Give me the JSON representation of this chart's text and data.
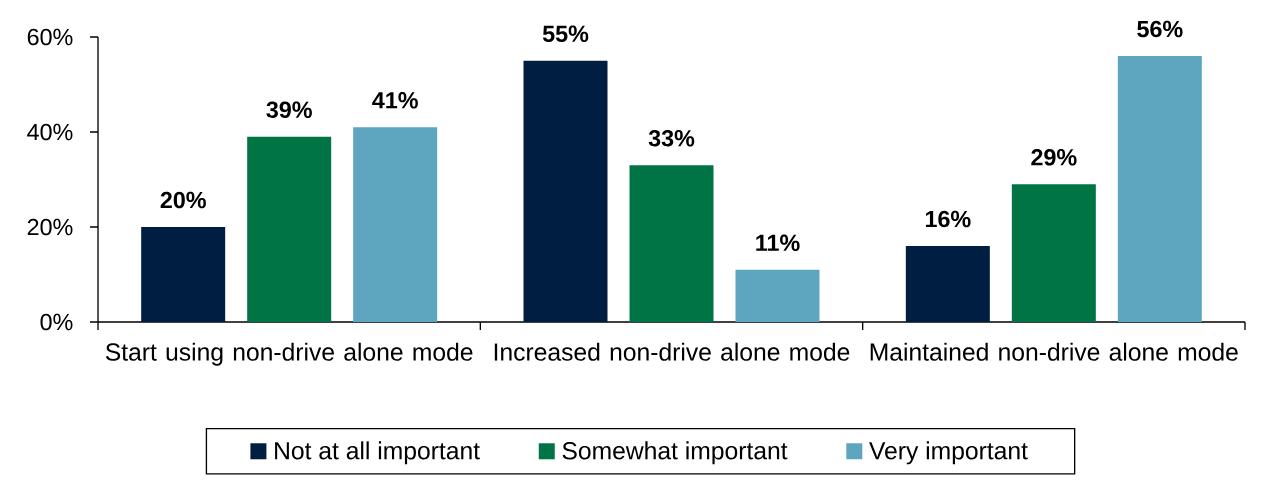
{
  "chart_data": {
    "type": "bar",
    "categories": [
      "Start using non-drive alone mode",
      "Increased non-drive alone mode",
      "Maintained non-drive alone mode"
    ],
    "series": [
      {
        "name": "Not at all important",
        "color": "#001d42",
        "values": [
          20,
          55,
          16
        ],
        "value_labels": [
          "20%",
          "55%",
          "16%"
        ]
      },
      {
        "name": "Somewhat important",
        "color": "#007445",
        "values": [
          39,
          33,
          29
        ],
        "value_labels": [
          "39%",
          "33%",
          "29%"
        ]
      },
      {
        "name": "Very important",
        "color": "#5ea5c0",
        "values": [
          41,
          11,
          56
        ],
        "value_labels": [
          "41%",
          "11%",
          "56%"
        ]
      }
    ],
    "ylim": [
      0,
      60
    ],
    "yticks": [
      {
        "value": 0,
        "label": "0%"
      },
      {
        "value": 20,
        "label": "20%"
      },
      {
        "value": 40,
        "label": "40%"
      },
      {
        "value": 60,
        "label": "60%"
      }
    ],
    "legend": "bottom"
  }
}
